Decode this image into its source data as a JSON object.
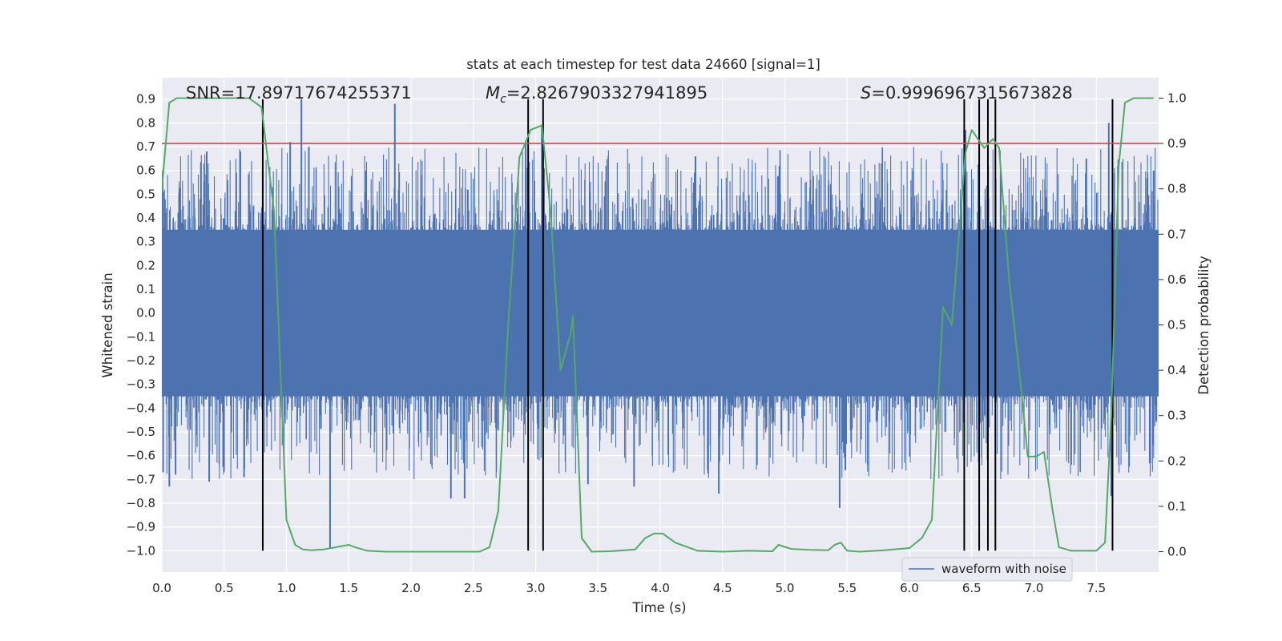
{
  "chart_data": {
    "type": "line",
    "title": "stats at each timestep for test data 24660 [signal=1]",
    "xlabel": "Time (s)",
    "ylabel": "Whitened strain",
    "ylabel_right": "Detection probability",
    "xlim": [
      0,
      8
    ],
    "ylim": [
      -1.09,
      0.99
    ],
    "ylim_right": [
      -0.045,
      1.045
    ],
    "x_ticks": [
      "0.0",
      "0.5",
      "1.0",
      "1.5",
      "2.0",
      "2.5",
      "3.0",
      "3.5",
      "4.0",
      "4.5",
      "5.0",
      "5.5",
      "6.0",
      "6.5",
      "7.0",
      "7.5"
    ],
    "y_ticks": [
      "0.9",
      "0.8",
      "0.7",
      "0.6",
      "0.5",
      "0.4",
      "0.3",
      "0.2",
      "0.1",
      "0.0",
      "−0.1",
      "−0.2",
      "−0.3",
      "−0.4",
      "−0.5",
      "−0.6",
      "−0.7",
      "−0.8",
      "−0.9",
      "−1.0"
    ],
    "y_ticks_right": [
      "1.0",
      "0.9",
      "0.8",
      "0.7",
      "0.6",
      "0.5",
      "0.4",
      "0.3",
      "0.2",
      "0.1",
      "0.0"
    ],
    "annotations": {
      "snr": "SNR=17.89717674255371",
      "mc_symbol": "M",
      "mc_sub": "c",
      "mc_value": "=2.8267903327941895",
      "s_symbol": "S",
      "s_value": "=0.9996967315673828"
    },
    "legend": {
      "label": "waveform with noise",
      "placement": "lower-right"
    },
    "threshold_y_right": 0.9,
    "event_lines_x": [
      0.81,
      2.94,
      3.06,
      6.44,
      6.56,
      6.63,
      6.69,
      7.63
    ],
    "event_line_range_y": [
      -1.0,
      0.9
    ],
    "colors": {
      "waveform": "#4c72b0",
      "probability": "#55a868",
      "threshold": "#c44e52",
      "event_lines": "#000000",
      "background": "#eaeaf2",
      "grid": "#ffffff"
    },
    "series": [
      {
        "name": "waveform with noise",
        "axis": "left",
        "kind": "noisy waveform (dense envelope)",
        "x_range": [
          0,
          8
        ],
        "core_envelope": [
          -0.35,
          0.35
        ],
        "peaks": [
          {
            "x": 0.01,
            "y": 0.51
          },
          {
            "x": 0.01,
            "y": -0.67
          },
          {
            "x": 0.06,
            "y": -0.73
          },
          {
            "x": 0.11,
            "y": -0.68
          },
          {
            "x": 0.36,
            "y": 0.68
          },
          {
            "x": 0.38,
            "y": -0.71
          },
          {
            "x": 0.63,
            "y": 0.68
          },
          {
            "x": 0.66,
            "y": -0.69
          },
          {
            "x": 1.03,
            "y": 0.72
          },
          {
            "x": 1.12,
            "y": 0.9
          },
          {
            "x": 1.18,
            "y": 0.7
          },
          {
            "x": 1.35,
            "y": -0.99
          },
          {
            "x": 1.87,
            "y": 0.88
          },
          {
            "x": 2.32,
            "y": -0.78
          },
          {
            "x": 2.43,
            "y": -0.78
          },
          {
            "x": 2.92,
            "y": 0.71
          },
          {
            "x": 3.05,
            "y": 0.79
          },
          {
            "x": 3.42,
            "y": -0.72
          },
          {
            "x": 3.79,
            "y": -0.73
          },
          {
            "x": 4.47,
            "y": -0.76
          },
          {
            "x": 5.44,
            "y": -0.82
          },
          {
            "x": 6.45,
            "y": 0.77
          },
          {
            "x": 7.42,
            "y": 0.65
          },
          {
            "x": 7.6,
            "y": 0.8
          },
          {
            "x": 7.62,
            "y": -0.77
          },
          {
            "x": 7.96,
            "y": 0.6
          }
        ]
      },
      {
        "name": "",
        "axis": "right",
        "kind": "detection probability",
        "points": [
          [
            0.0,
            0.8
          ],
          [
            0.06,
            0.99
          ],
          [
            0.12,
            1.0
          ],
          [
            0.3,
            1.0
          ],
          [
            0.5,
            1.0
          ],
          [
            0.7,
            1.0
          ],
          [
            0.75,
            0.99
          ],
          [
            0.8,
            0.98
          ],
          [
            0.9,
            0.75
          ],
          [
            1.0,
            0.07
          ],
          [
            1.07,
            0.015
          ],
          [
            1.13,
            0.005
          ],
          [
            1.2,
            0.003
          ],
          [
            1.3,
            0.005
          ],
          [
            1.4,
            0.01
          ],
          [
            1.5,
            0.015
          ],
          [
            1.55,
            0.01
          ],
          [
            1.65,
            0.002
          ],
          [
            1.8,
            0.0
          ],
          [
            2.0,
            0.0
          ],
          [
            2.2,
            0.0
          ],
          [
            2.4,
            0.0
          ],
          [
            2.55,
            0.0
          ],
          [
            2.63,
            0.01
          ],
          [
            2.7,
            0.09
          ],
          [
            2.78,
            0.5
          ],
          [
            2.87,
            0.87
          ],
          [
            2.96,
            0.93
          ],
          [
            3.05,
            0.94
          ],
          [
            3.12,
            0.75
          ],
          [
            3.2,
            0.4
          ],
          [
            3.28,
            0.48
          ],
          [
            3.3,
            0.52
          ],
          [
            3.37,
            0.03
          ],
          [
            3.45,
            0.0
          ],
          [
            3.6,
            0.001
          ],
          [
            3.8,
            0.005
          ],
          [
            3.88,
            0.03
          ],
          [
            3.95,
            0.04
          ],
          [
            4.02,
            0.04
          ],
          [
            4.12,
            0.02
          ],
          [
            4.3,
            0.002
          ],
          [
            4.5,
            0.0
          ],
          [
            4.7,
            0.002
          ],
          [
            4.9,
            0.001
          ],
          [
            4.95,
            0.015
          ],
          [
            5.05,
            0.006
          ],
          [
            5.2,
            0.004
          ],
          [
            5.35,
            0.003
          ],
          [
            5.4,
            0.015
          ],
          [
            5.45,
            0.02
          ],
          [
            5.5,
            0.002
          ],
          [
            5.6,
            0.0
          ],
          [
            5.8,
            0.003
          ],
          [
            6.0,
            0.008
          ],
          [
            6.1,
            0.03
          ],
          [
            6.18,
            0.07
          ],
          [
            6.27,
            0.54
          ],
          [
            6.34,
            0.5
          ],
          [
            6.45,
            0.88
          ],
          [
            6.5,
            0.93
          ],
          [
            6.55,
            0.91
          ],
          [
            6.6,
            0.89
          ],
          [
            6.67,
            0.91
          ],
          [
            6.72,
            0.89
          ],
          [
            6.8,
            0.6
          ],
          [
            6.9,
            0.35
          ],
          [
            6.95,
            0.21
          ],
          [
            7.02,
            0.21
          ],
          [
            7.08,
            0.22
          ],
          [
            7.15,
            0.09
          ],
          [
            7.2,
            0.01
          ],
          [
            7.3,
            0.002
          ],
          [
            7.5,
            0.002
          ],
          [
            7.57,
            0.02
          ],
          [
            7.62,
            0.3
          ],
          [
            7.68,
            0.85
          ],
          [
            7.73,
            0.99
          ],
          [
            7.8,
            1.0
          ],
          [
            7.96,
            1.0
          ]
        ]
      }
    ]
  }
}
